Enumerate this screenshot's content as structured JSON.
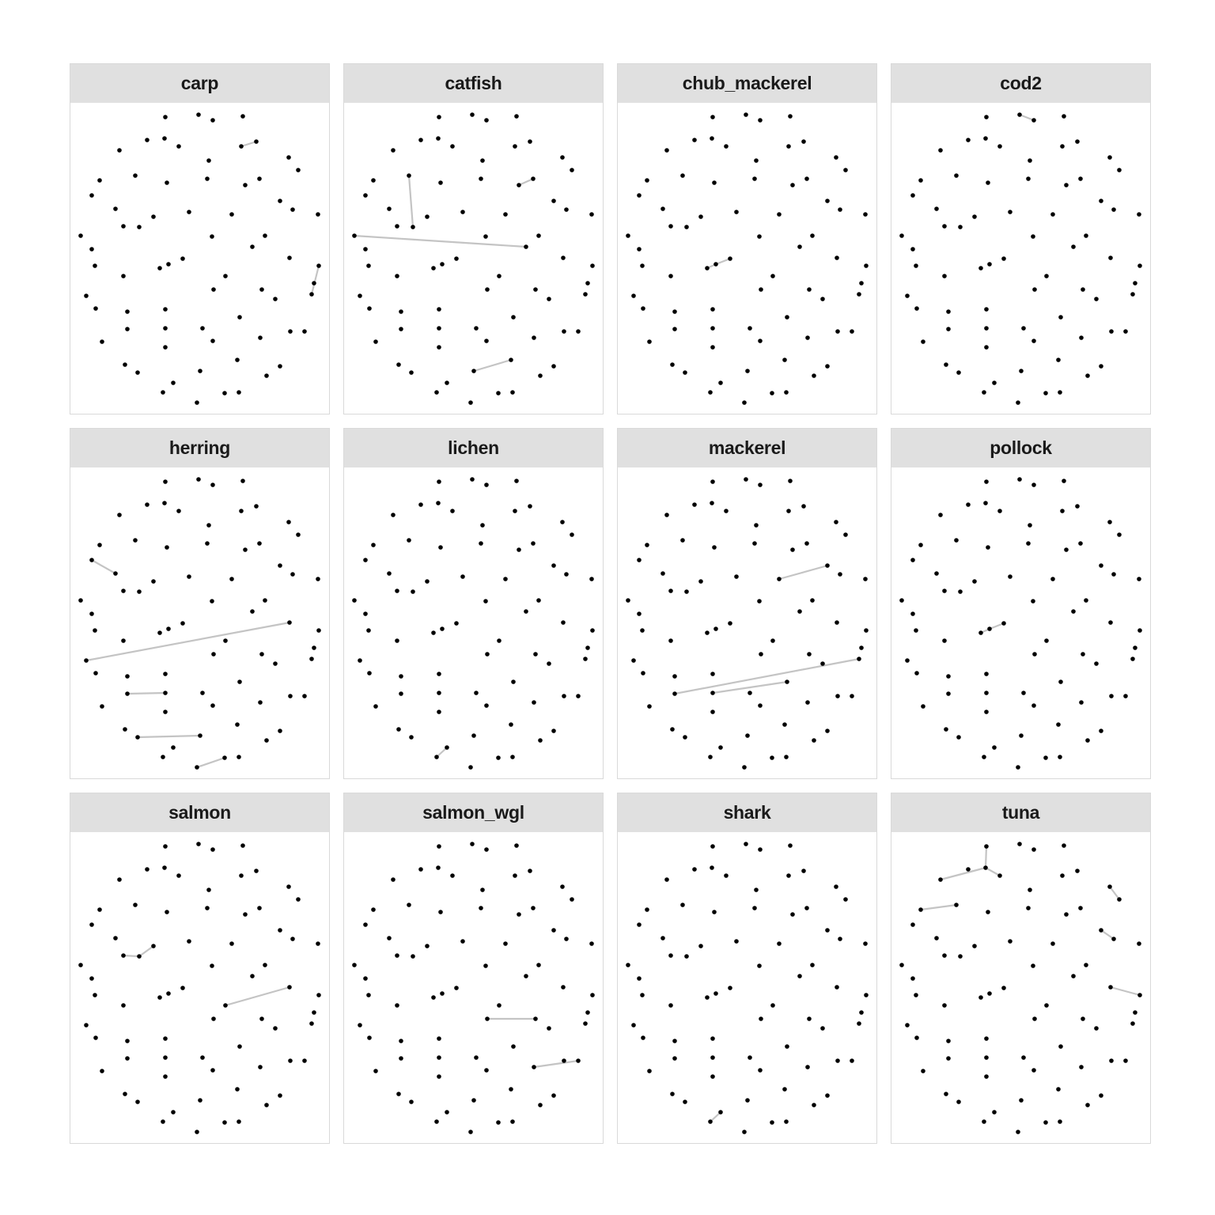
{
  "colors": {
    "node": "#000000",
    "edge": "#c4c4c4",
    "strip": "#e0e0e0",
    "border": "#d9d9d9"
  },
  "panels": [
    {
      "label": "carp"
    },
    {
      "label": "catfish"
    },
    {
      "label": "chub_mackerel"
    },
    {
      "label": "cod2"
    },
    {
      "label": "herring"
    },
    {
      "label": "lichen"
    },
    {
      "label": "mackerel"
    },
    {
      "label": "pollock"
    },
    {
      "label": "salmon"
    },
    {
      "label": "salmon_wgl"
    },
    {
      "label": "shark"
    },
    {
      "label": "tuna"
    }
  ]
}
